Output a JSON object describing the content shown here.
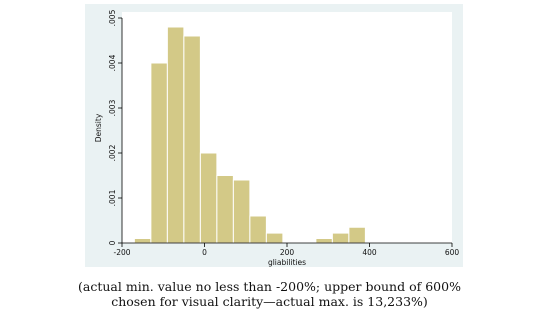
{
  "chart_data": {
    "type": "bar",
    "subtype": "histogram",
    "xlabel": "gliabilities",
    "ylabel": "Density",
    "xlim": [
      -200,
      600
    ],
    "ylim": [
      0,
      0.005
    ],
    "xticks": [
      "-200",
      "0",
      "200",
      "400",
      "600"
    ],
    "xtick_values": [
      -200,
      0,
      200,
      400,
      600
    ],
    "yticks": [
      "0",
      ".001",
      ".002",
      ".003",
      ".004",
      ".005"
    ],
    "ytick_values": [
      0,
      0.001,
      0.002,
      0.003,
      0.004,
      0.005
    ],
    "bin_width": 40,
    "bins": [
      {
        "x0": -170,
        "x1": -130,
        "density": 0.0001
      },
      {
        "x0": -130,
        "x1": -90,
        "density": 0.004
      },
      {
        "x0": -90,
        "x1": -50,
        "density": 0.0048
      },
      {
        "x0": -50,
        "x1": -10,
        "density": 0.0046
      },
      {
        "x0": -10,
        "x1": 30,
        "density": 0.002
      },
      {
        "x0": 30,
        "x1": 70,
        "density": 0.0015
      },
      {
        "x0": 70,
        "x1": 110,
        "density": 0.0014
      },
      {
        "x0": 110,
        "x1": 150,
        "density": 0.0006
      },
      {
        "x0": 150,
        "x1": 190,
        "density": 0.00022
      },
      {
        "x0": 190,
        "x1": 230,
        "density": 0.0
      },
      {
        "x0": 230,
        "x1": 270,
        "density": 0.0
      },
      {
        "x0": 270,
        "x1": 310,
        "density": 0.0001
      },
      {
        "x0": 310,
        "x1": 350,
        "density": 0.00022
      },
      {
        "x0": 350,
        "x1": 390,
        "density": 0.00035
      }
    ],
    "bar_fill": "#d3c987",
    "bar_edge": "#ffffff",
    "plot_background": "#ffffff",
    "outer_background": "#eaf2f3",
    "axis_color": "#000000",
    "grid": false
  },
  "caption": {
    "line1": "(actual min. value no less than -200%; upper bound of 600%",
    "line2": "chosen for visual clarity—actual max. is 13,233%)"
  }
}
